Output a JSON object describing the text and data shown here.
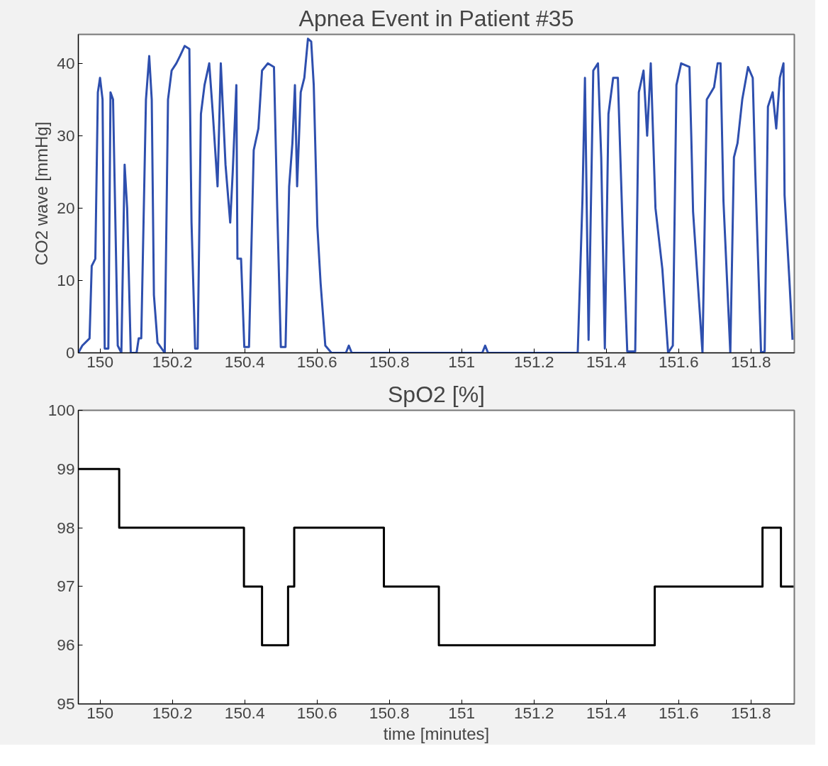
{
  "chart_data": [
    {
      "type": "line",
      "title": "Apnea Event in Patient #35",
      "ylabel": "CO2 wave [mmHg]",
      "xlim": [
        149.94,
        151.92
      ],
      "xticks": [
        150,
        150.2,
        150.4,
        150.6,
        150.8,
        151,
        151.2,
        151.4,
        151.6,
        151.8
      ],
      "ylim": [
        0,
        44
      ],
      "yticks": [
        0,
        10,
        20,
        30,
        40
      ],
      "grid": false,
      "line_style": "solid",
      "series": [
        {
          "color": "#2e4fae",
          "x": [
            149.94,
            149.951,
            149.971,
            149.977,
            149.987,
            149.994,
            150.0,
            150.007,
            150.013,
            150.023,
            150.029,
            150.036,
            150.049,
            150.059,
            150.068,
            150.075,
            150.085,
            150.101,
            150.107,
            150.114,
            150.127,
            150.136,
            150.143,
            150.149,
            150.159,
            150.179,
            150.188,
            150.198,
            150.211,
            150.221,
            150.234,
            150.247,
            150.253,
            150.263,
            150.27,
            150.279,
            150.289,
            150.302,
            150.312,
            150.325,
            150.334,
            150.347,
            150.36,
            150.367,
            150.377,
            150.38,
            150.39,
            150.399,
            150.412,
            150.425,
            150.438,
            150.448,
            150.464,
            150.481,
            150.49,
            150.5,
            150.513,
            150.523,
            150.532,
            150.539,
            150.545,
            150.555,
            150.565,
            150.575,
            150.584,
            150.591,
            150.601,
            150.61,
            150.623,
            150.64,
            150.68,
            150.688,
            150.696,
            151.057,
            151.065,
            151.073,
            151.321,
            151.334,
            151.341,
            151.351,
            151.364,
            151.377,
            151.386,
            151.396,
            151.406,
            151.419,
            151.432,
            151.445,
            151.458,
            151.48,
            151.49,
            151.503,
            151.513,
            151.523,
            151.536,
            151.555,
            151.571,
            151.584,
            151.594,
            151.607,
            151.63,
            151.635,
            151.64,
            151.666,
            151.678,
            151.698,
            151.708,
            151.716,
            151.724,
            151.743,
            151.753,
            151.763,
            151.776,
            151.792,
            151.805,
            151.812,
            151.828,
            151.838,
            151.847,
            151.86,
            151.87,
            151.88,
            151.89,
            151.893,
            151.906,
            151.915
          ],
          "values": [
            0,
            1,
            2,
            12,
            13,
            36,
            38,
            35,
            0.6,
            0.6,
            36,
            35,
            1,
            0,
            26,
            20,
            0,
            0,
            2,
            2,
            35,
            41,
            35,
            8,
            1.4,
            0,
            35,
            39,
            40,
            41,
            42.4,
            42,
            18,
            0.6,
            0.6,
            33,
            37,
            40,
            33,
            23,
            40,
            26,
            18,
            25,
            37,
            13,
            13,
            0.8,
            0.8,
            28,
            31,
            39,
            40,
            39.5,
            20,
            0.8,
            0.8,
            23,
            29,
            37,
            23,
            36,
            38,
            43.4,
            43,
            37,
            17.5,
            9.6,
            1,
            0,
            0,
            1,
            0,
            0,
            1,
            0,
            0,
            21,
            38,
            1.8,
            39,
            40,
            27,
            0.6,
            33,
            38,
            38,
            17.5,
            0.2,
            0.2,
            36,
            39,
            30,
            40,
            20,
            11.6,
            0,
            1,
            37,
            40,
            39.5,
            30,
            19.5,
            0,
            35,
            36.7,
            40,
            40,
            21,
            0,
            27,
            29,
            35,
            39.5,
            38,
            25,
            0,
            0.2,
            34,
            36,
            31,
            38,
            40,
            21.8,
            10.4,
            1.8
          ]
        }
      ]
    },
    {
      "type": "step",
      "title": "SpO2 [%]",
      "xlabel": "time [minutes]",
      "xlim": [
        149.94,
        151.92
      ],
      "xticks": [
        150,
        150.2,
        150.4,
        150.6,
        150.8,
        151,
        151.2,
        151.4,
        151.6,
        151.8
      ],
      "ylim": [
        95,
        100
      ],
      "yticks": [
        95,
        96,
        97,
        98,
        99,
        100
      ],
      "grid": false,
      "line_style": "solid",
      "series": [
        {
          "color": "#000000",
          "x": [
            149.94,
            150.053,
            150.398,
            150.448,
            150.52,
            150.537,
            150.785,
            150.937,
            151.534,
            151.832,
            151.883,
            151.918
          ],
          "values": [
            99,
            98,
            97,
            96,
            97,
            98,
            97,
            96,
            97,
            98,
            97,
            97
          ]
        }
      ]
    }
  ]
}
